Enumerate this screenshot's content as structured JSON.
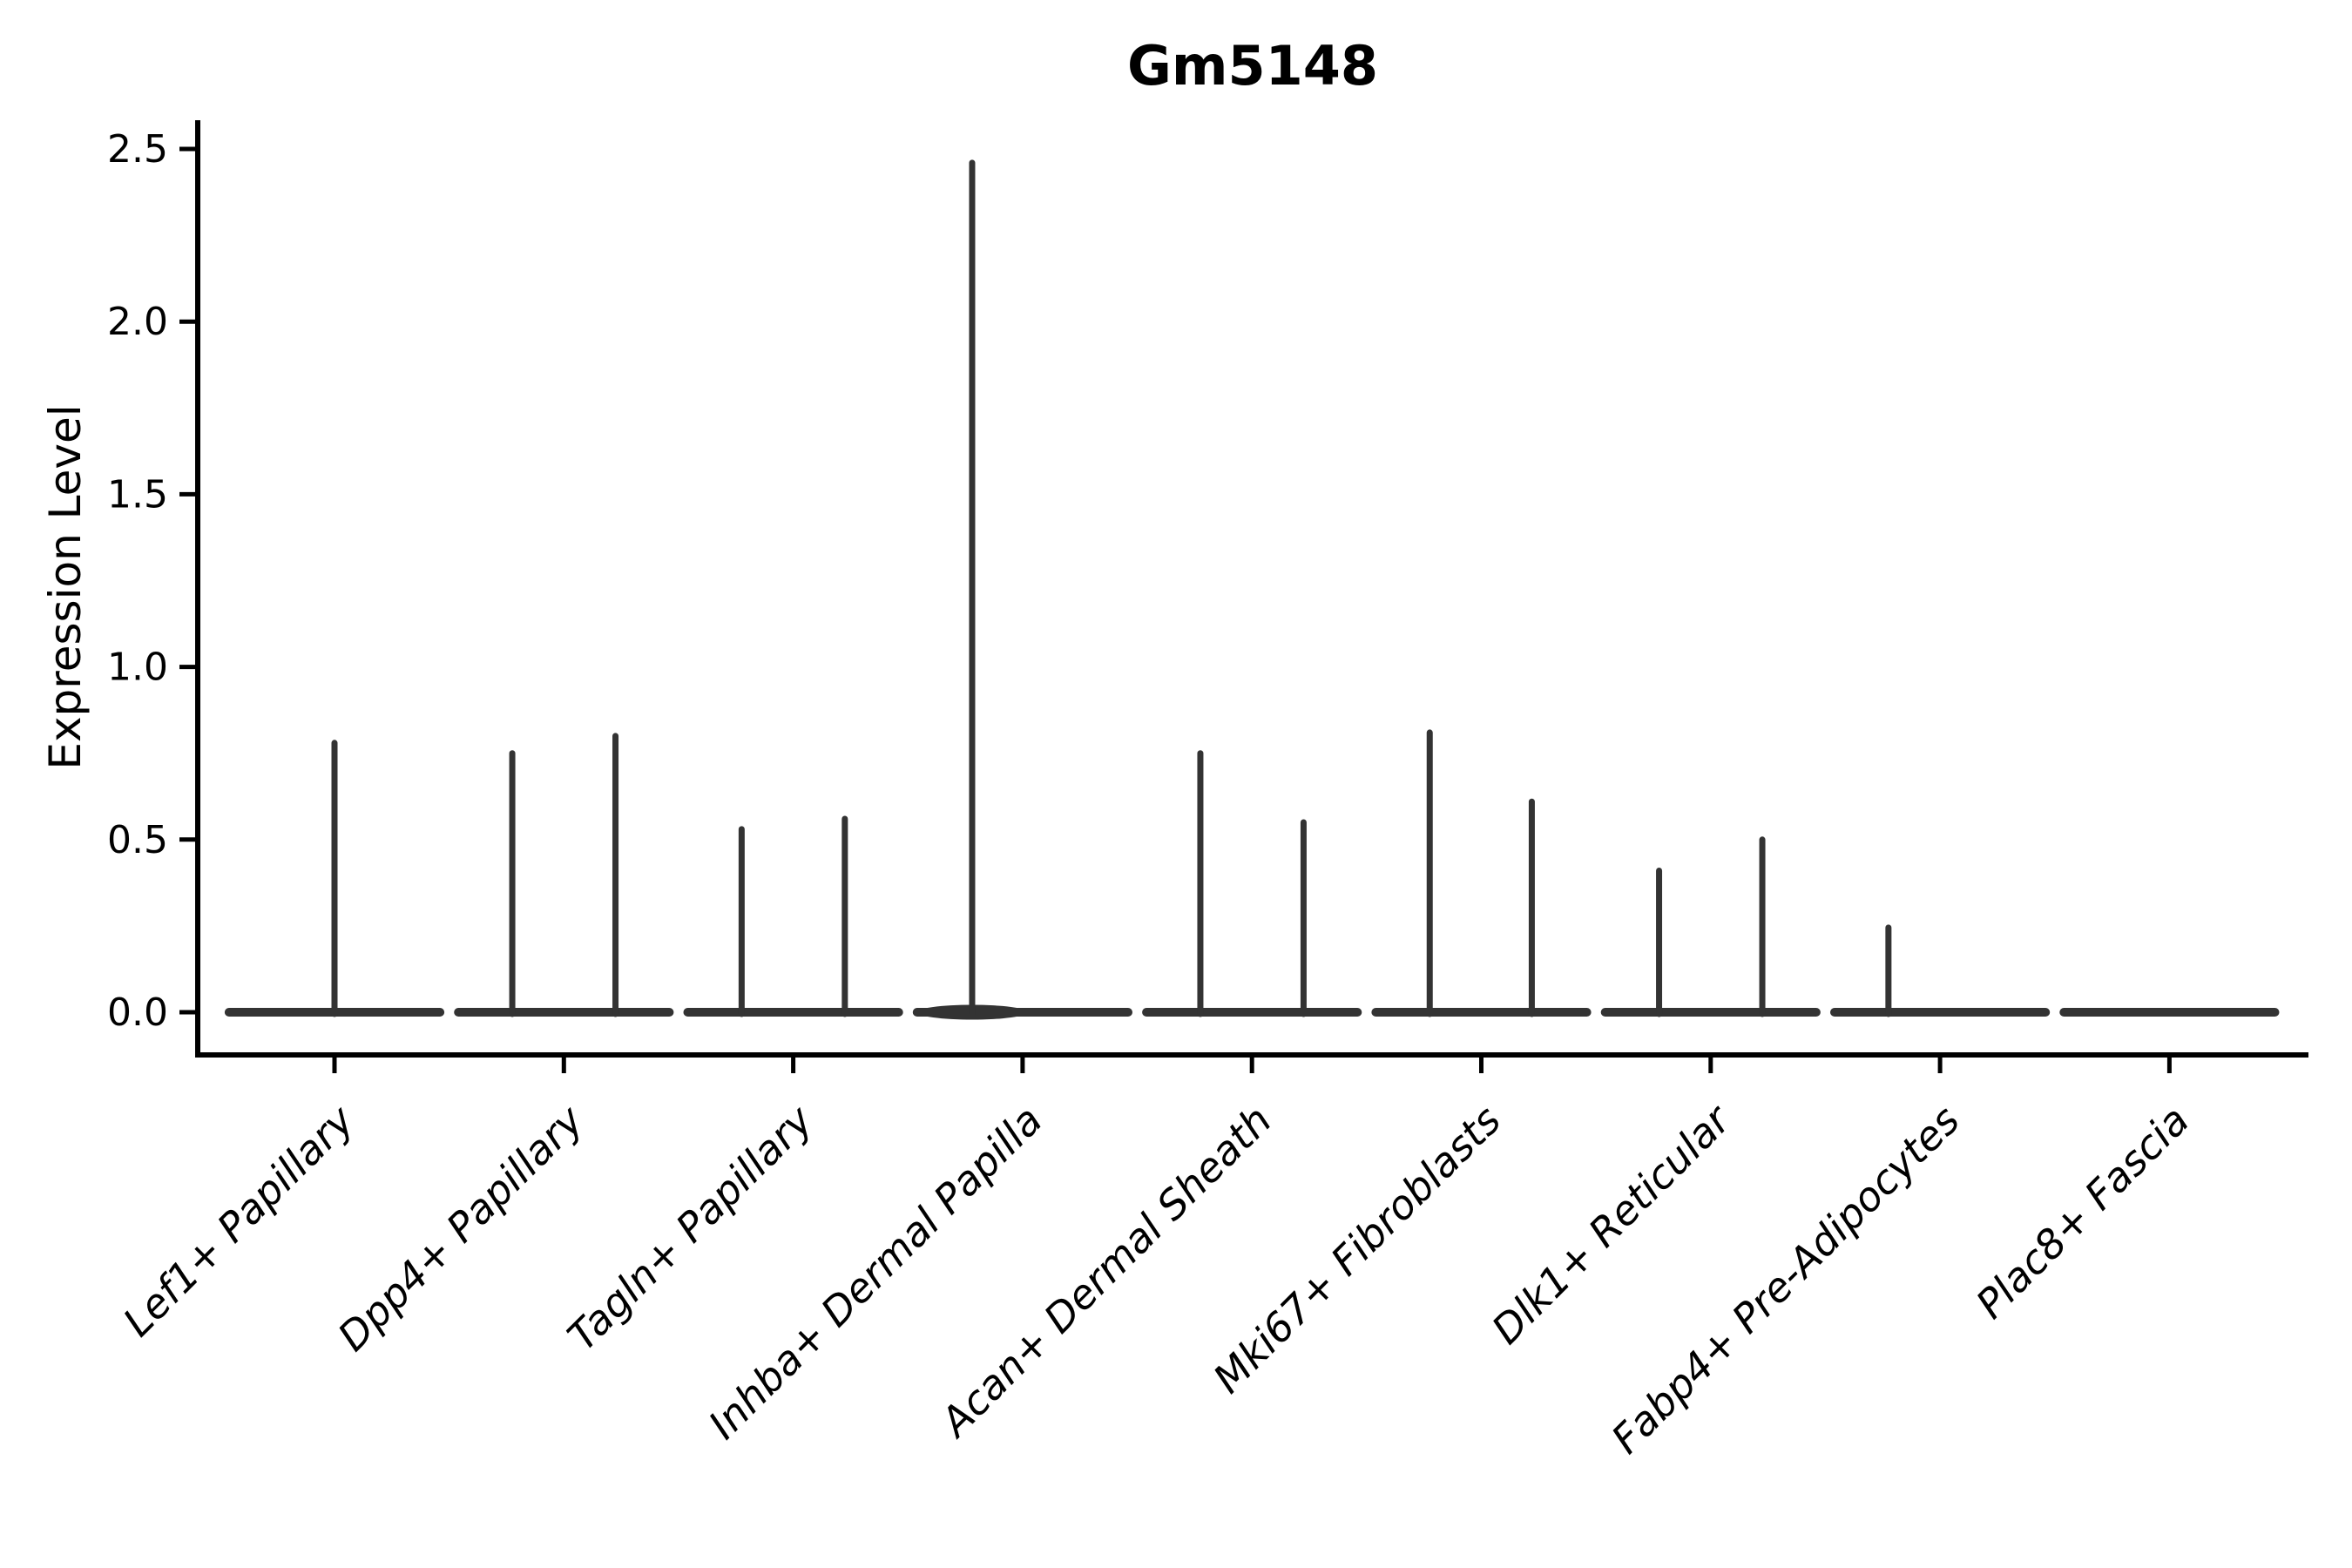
{
  "chart_data": {
    "type": "violin",
    "title": "Gm5148",
    "ylabel": "Expression Level",
    "xlabel": "",
    "ylim": [
      -0.12,
      2.58
    ],
    "yticks": [
      0.0,
      0.5,
      1.0,
      1.5,
      2.0,
      2.5
    ],
    "ytick_labels": [
      "0.0",
      "0.5",
      "1.0",
      "1.5",
      "2.0",
      "2.5"
    ],
    "grid": false,
    "legend": "none",
    "x_label_rotation_deg": 45,
    "style": {
      "violin_color": "#333333",
      "axis_color": "#000000",
      "background": "#ffffff"
    },
    "categories": [
      "Lef1+ Papillary",
      "Dpp4+ Papillary",
      "Tagln+ Papillary",
      "Inhba+ Dermal Papilla",
      "Acan+ Dermal Sheath",
      "Mki67+ Fibroblasts",
      "Dlk1+ Reticular",
      "Fabp4+ Pre-Adipocytes",
      "Plac8+ Fascia"
    ],
    "violins": [
      {
        "category": "Lef1+ Papillary",
        "base_halfwidth": 0.46,
        "spikes": [
          {
            "pos": 0.0,
            "max": 0.78
          }
        ]
      },
      {
        "category": "Dpp4+ Papillary",
        "base_halfwidth": 0.46,
        "spikes": [
          {
            "pos": -0.225,
            "max": 0.75
          },
          {
            "pos": 0.225,
            "max": 0.8
          }
        ]
      },
      {
        "category": "Tagln+ Papillary",
        "base_halfwidth": 0.46,
        "spikes": [
          {
            "pos": -0.225,
            "max": 0.53
          },
          {
            "pos": 0.225,
            "max": 0.56
          }
        ]
      },
      {
        "category": "Inhba+ Dermal Papilla",
        "base_halfwidth": 0.46,
        "base_bump": {
          "pos": -0.22,
          "halfwidth": 0.24
        },
        "spikes": [
          {
            "pos": -0.22,
            "max": 2.46
          }
        ]
      },
      {
        "category": "Acan+ Dermal Sheath",
        "base_halfwidth": 0.46,
        "spikes": [
          {
            "pos": -0.225,
            "max": 0.75
          },
          {
            "pos": 0.225,
            "max": 0.55
          }
        ]
      },
      {
        "category": "Mki67+ Fibroblasts",
        "base_halfwidth": 0.46,
        "spikes": [
          {
            "pos": -0.225,
            "max": 0.81
          },
          {
            "pos": 0.22,
            "max": 0.61
          }
        ]
      },
      {
        "category": "Dlk1+ Reticular",
        "base_halfwidth": 0.46,
        "spikes": [
          {
            "pos": -0.225,
            "max": 0.41
          },
          {
            "pos": 0.225,
            "max": 0.5
          }
        ]
      },
      {
        "category": "Fabp4+ Pre-Adipocytes",
        "base_halfwidth": 0.46,
        "spikes": [
          {
            "pos": -0.225,
            "max": 0.245
          }
        ]
      },
      {
        "category": "Plac8+ Fascia",
        "base_halfwidth": 0.46,
        "spikes": []
      }
    ]
  }
}
